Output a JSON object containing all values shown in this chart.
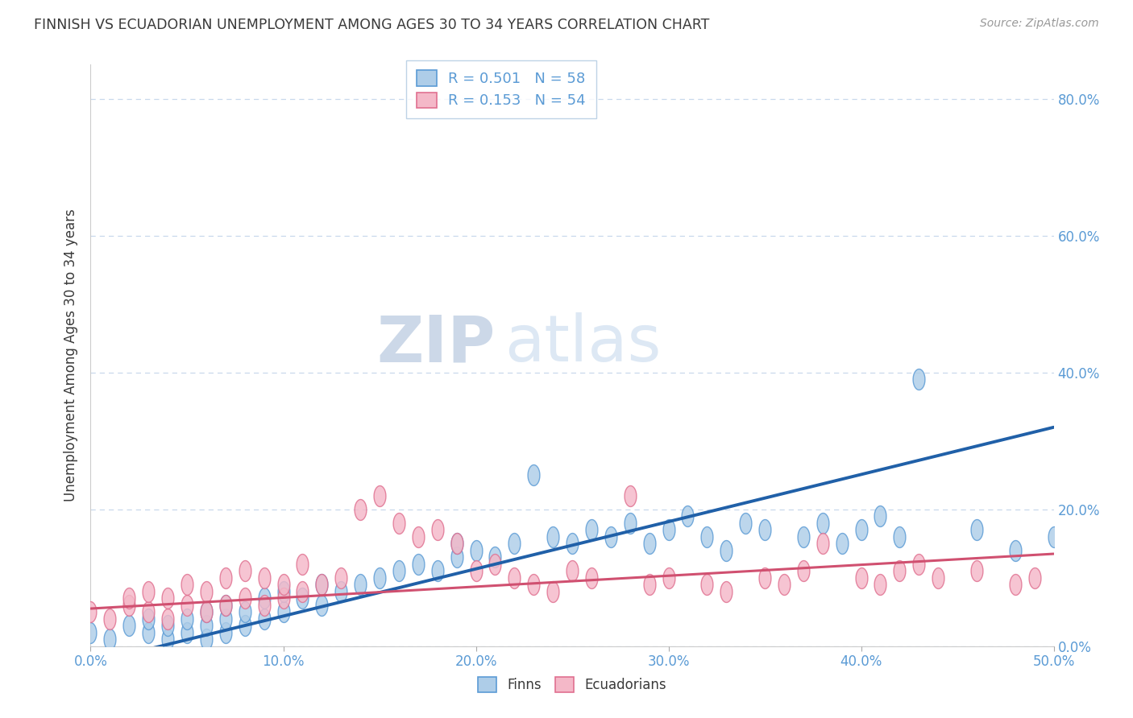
{
  "title": "FINNISH VS ECUADORIAN UNEMPLOYMENT AMONG AGES 30 TO 34 YEARS CORRELATION CHART",
  "source": "Source: ZipAtlas.com",
  "ylabel": "Unemployment Among Ages 30 to 34 years",
  "xlim": [
    0.0,
    0.5
  ],
  "ylim": [
    0.0,
    0.85
  ],
  "title_color": "#3a3a3a",
  "axis_color": "#5b9bd5",
  "grid_color": "#c8d8ec",
  "finn_color": "#aecde8",
  "finn_edge_color": "#5b9bd5",
  "ecu_color": "#f4b8c8",
  "ecu_edge_color": "#e07090",
  "finn_line_color": "#2060a8",
  "ecu_line_color": "#d05070",
  "R_finn": 0.501,
  "N_finn": 58,
  "R_ecu": 0.153,
  "N_ecu": 54,
  "legend_finn": "Finns",
  "legend_ecu": "Ecuadorians",
  "finn_x": [
    0.0,
    0.01,
    0.02,
    0.03,
    0.03,
    0.04,
    0.04,
    0.05,
    0.05,
    0.06,
    0.06,
    0.06,
    0.07,
    0.07,
    0.07,
    0.08,
    0.08,
    0.09,
    0.09,
    0.1,
    0.1,
    0.11,
    0.12,
    0.12,
    0.13,
    0.14,
    0.15,
    0.16,
    0.17,
    0.18,
    0.19,
    0.19,
    0.2,
    0.21,
    0.22,
    0.23,
    0.24,
    0.25,
    0.26,
    0.27,
    0.28,
    0.29,
    0.3,
    0.31,
    0.32,
    0.33,
    0.34,
    0.35,
    0.37,
    0.38,
    0.39,
    0.4,
    0.41,
    0.42,
    0.43,
    0.46,
    0.48,
    0.5
  ],
  "finn_y": [
    0.02,
    0.01,
    0.03,
    0.02,
    0.04,
    0.01,
    0.03,
    0.02,
    0.04,
    0.01,
    0.03,
    0.05,
    0.02,
    0.04,
    0.06,
    0.03,
    0.05,
    0.04,
    0.07,
    0.05,
    0.08,
    0.07,
    0.06,
    0.09,
    0.08,
    0.09,
    0.1,
    0.11,
    0.12,
    0.11,
    0.13,
    0.15,
    0.14,
    0.13,
    0.15,
    0.25,
    0.16,
    0.15,
    0.17,
    0.16,
    0.18,
    0.15,
    0.17,
    0.19,
    0.16,
    0.14,
    0.18,
    0.17,
    0.16,
    0.18,
    0.15,
    0.17,
    0.19,
    0.16,
    0.39,
    0.17,
    0.14,
    0.16
  ],
  "ecu_x": [
    0.0,
    0.01,
    0.02,
    0.02,
    0.03,
    0.03,
    0.04,
    0.04,
    0.05,
    0.05,
    0.06,
    0.06,
    0.07,
    0.07,
    0.08,
    0.08,
    0.09,
    0.09,
    0.1,
    0.1,
    0.11,
    0.11,
    0.12,
    0.13,
    0.14,
    0.15,
    0.16,
    0.17,
    0.18,
    0.19,
    0.2,
    0.21,
    0.22,
    0.23,
    0.24,
    0.25,
    0.26,
    0.28,
    0.29,
    0.3,
    0.32,
    0.33,
    0.35,
    0.36,
    0.37,
    0.38,
    0.4,
    0.41,
    0.42,
    0.43,
    0.44,
    0.46,
    0.48,
    0.49
  ],
  "ecu_y": [
    0.05,
    0.04,
    0.06,
    0.07,
    0.05,
    0.08,
    0.04,
    0.07,
    0.06,
    0.09,
    0.05,
    0.08,
    0.06,
    0.1,
    0.07,
    0.11,
    0.06,
    0.1,
    0.07,
    0.09,
    0.08,
    0.12,
    0.09,
    0.1,
    0.2,
    0.22,
    0.18,
    0.16,
    0.17,
    0.15,
    0.11,
    0.12,
    0.1,
    0.09,
    0.08,
    0.11,
    0.1,
    0.22,
    0.09,
    0.1,
    0.09,
    0.08,
    0.1,
    0.09,
    0.11,
    0.15,
    0.1,
    0.09,
    0.11,
    0.12,
    0.1,
    0.11,
    0.09,
    0.1
  ],
  "finn_trend": [
    -0.025,
    0.32
  ],
  "ecu_trend": [
    0.055,
    0.135
  ],
  "watermark_line1": "ZIP",
  "watermark_line2": "atlas",
  "watermark_color": "#dce8f4"
}
